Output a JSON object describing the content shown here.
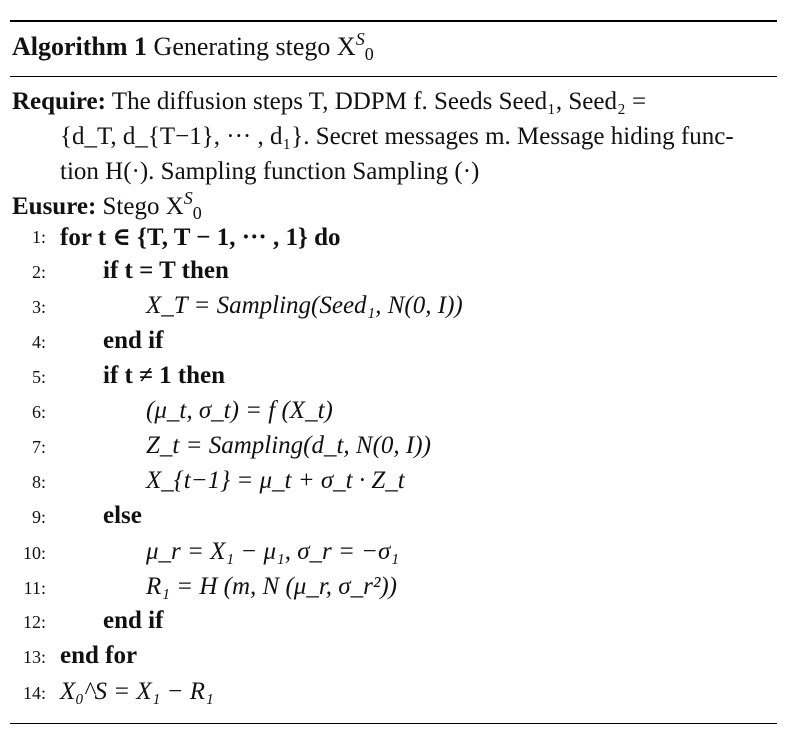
{
  "title": {
    "label": "Algorithm 1",
    "text": "Generating stego X",
    "sup": "S",
    "sub": "0"
  },
  "require": {
    "label": "Require:",
    "line1": "The diffusion steps T, DDPM f. Seeds Seed₁, Seed₂ =",
    "line2": "{d_T, d_{T−1}, ··· , d₁}. Secret messages m. Message hiding func-",
    "line3": "tion H(·). Sampling function Sampling (·)"
  },
  "ensure": {
    "label": "Eusure:",
    "text": "Stego X",
    "sup": "S",
    "sub": "0"
  },
  "lines": [
    {
      "num": "1:",
      "text": "for t ∈ {T, T − 1, ··· , 1} do"
    },
    {
      "num": "2:",
      "text": "if t = T then"
    },
    {
      "num": "3:",
      "text": "X_T = Sampling(Seed₁, N(0, I))"
    },
    {
      "num": "4:",
      "text": "end if"
    },
    {
      "num": "5:",
      "text": "if t ≠ 1 then"
    },
    {
      "num": "6:",
      "text": "(μ_t, σ_t) = f (X_t)"
    },
    {
      "num": "7:",
      "text": "Z_t = Sampling(d_t, N(0, I))"
    },
    {
      "num": "8:",
      "text": "X_{t−1} = μ_t + σ_t · Z_t"
    },
    {
      "num": "9:",
      "text": "else"
    },
    {
      "num": "10:",
      "text": "μ_r = X₁ − μ₁, σ_r = −σ₁"
    },
    {
      "num": "11:",
      "text": "R₁ = H (m, N (μ_r, σ_r²))"
    },
    {
      "num": "12:",
      "text": "end if"
    },
    {
      "num": "13:",
      "text": "end for"
    },
    {
      "num": "14:",
      "text": "X₀^S = X₁ − R₁"
    }
  ]
}
